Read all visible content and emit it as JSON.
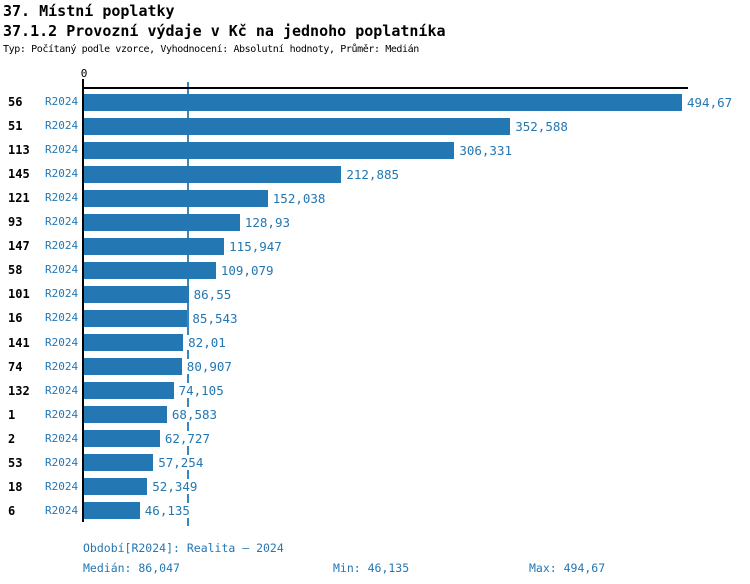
{
  "header": {
    "title1": "37. Místní poplatky",
    "title2": "37.1.2 Provozní výdaje v Kč na jednoho poplatníka",
    "subtitle": "Typ: Počítaný podle vzorce, Vyhodnocení: Absolutní hodnoty, Průměr: Medián"
  },
  "chart_data": {
    "type": "bar",
    "orientation": "horizontal",
    "axis": {
      "origin_label": "0"
    },
    "xlim": [
      0,
      494.67
    ],
    "period_label": "R2024",
    "categories": [
      "56",
      "51",
      "113",
      "145",
      "121",
      "93",
      "147",
      "58",
      "101",
      "16",
      "141",
      "74",
      "132",
      "1",
      "2",
      "53",
      "18",
      "6"
    ],
    "values": [
      494.67,
      352.588,
      306.331,
      212.885,
      152.038,
      128.93,
      115.947,
      109.079,
      86.55,
      85.543,
      82.01,
      80.907,
      74.105,
      68.583,
      62.727,
      57.254,
      52.349,
      46.135
    ],
    "value_labels": [
      "494,67",
      "352,588",
      "306,331",
      "212,885",
      "152,038",
      "128,93",
      "115,947",
      "109,079",
      "86,55",
      "85,543",
      "82,01",
      "80,907",
      "74,105",
      "68,583",
      "62,727",
      "57,254",
      "52,349",
      "46,135"
    ],
    "median": 86.047,
    "legend_position": "none",
    "grid": "median-line-only",
    "colors": {
      "bar": "#2377b3",
      "blue_text": "#2377b3",
      "median_line": "#3987bd",
      "axis": "#000000"
    }
  },
  "footer": {
    "period_info": "Období[R2024]: Realita – 2024",
    "median": "Medián: 86,047",
    "min": "Min: 46,135",
    "max": "Max: 494,67"
  }
}
